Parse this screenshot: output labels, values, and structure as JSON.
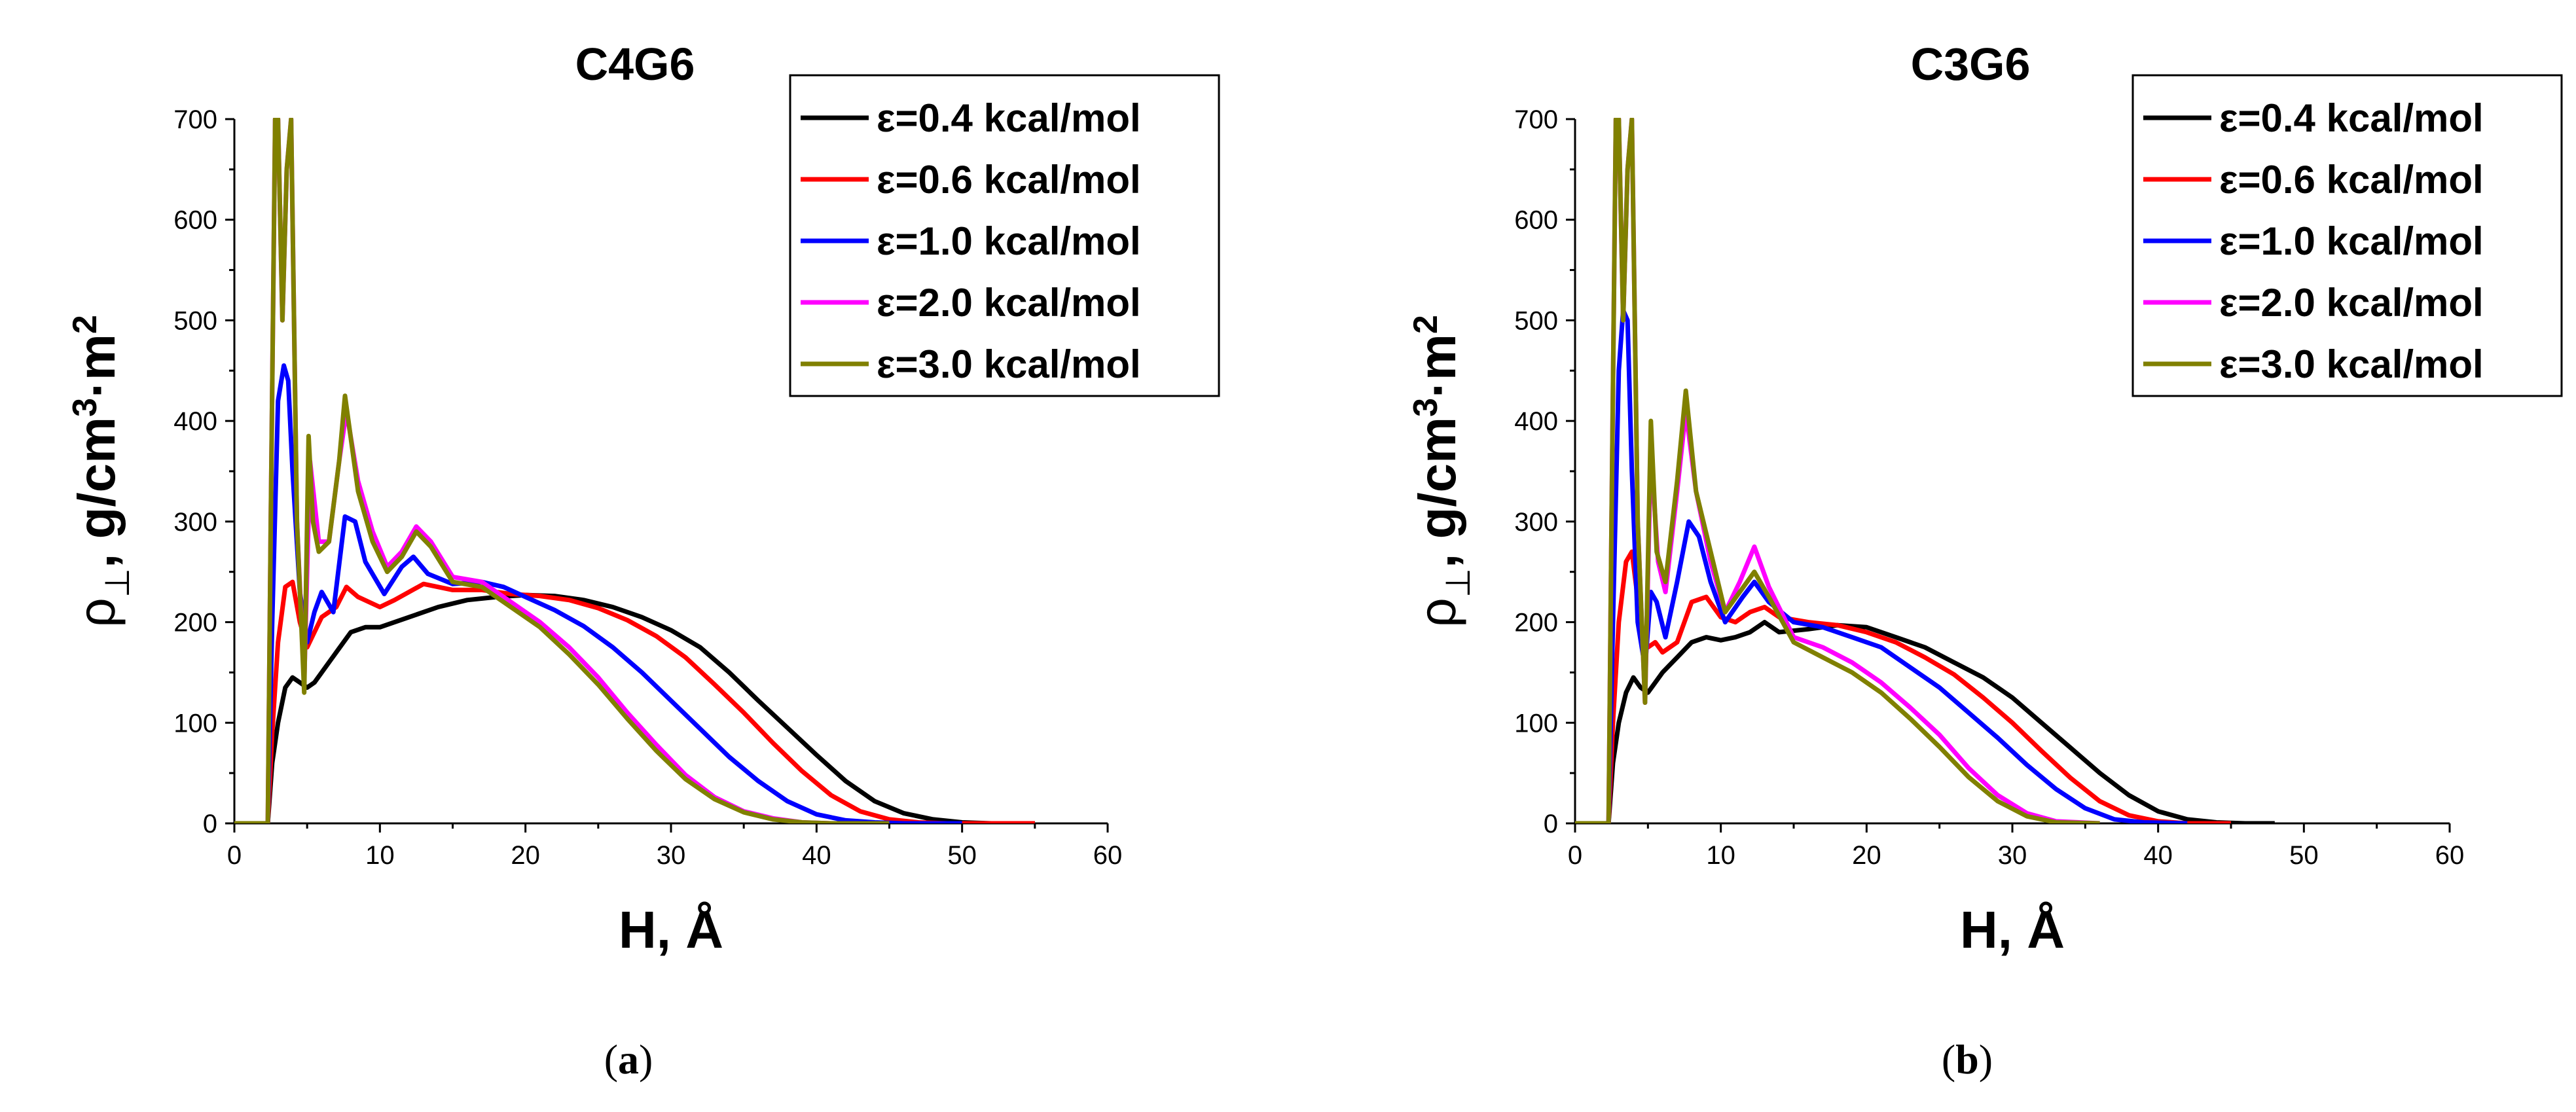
{
  "figure": {
    "panels": [
      {
        "caption_letter": "a"
      },
      {
        "caption_letter": "b"
      }
    ]
  },
  "colors": {
    "eps_0_4": "#000000",
    "eps_0_6": "#ff0000",
    "eps_1_0": "#0000ff",
    "eps_2_0": "#ff00ff",
    "eps_3_0": "#808000"
  },
  "chart_data": [
    {
      "type": "line",
      "title": "C4G6",
      "xlabel": "H, Å",
      "ylabel": {
        "rho": "ρ",
        "sub": "⊥",
        "unit": ", g/cm",
        "sup1": "3",
        "dot": "·m",
        "sup2": "2"
      },
      "xlim": [
        0,
        60
      ],
      "ylim": [
        0,
        700
      ],
      "xticks": [
        0,
        10,
        20,
        30,
        40,
        50,
        60
      ],
      "yticks": [
        0,
        100,
        200,
        300,
        400,
        500,
        600,
        700
      ],
      "legend_position": "top-right",
      "series": [
        {
          "name": "ε=0.4 kcal/mol",
          "color": "#000000",
          "x": [
            0,
            2.3,
            2.6,
            3.0,
            3.5,
            4.0,
            4.5,
            5.0,
            5.5,
            6.0,
            7.0,
            8.0,
            9.0,
            10.0,
            12.0,
            14.0,
            16.0,
            18.0,
            20.0,
            22.0,
            24.0,
            26.0,
            28.0,
            30.0,
            32.0,
            34.0,
            36.0,
            38.0,
            40.0,
            42.0,
            44.0,
            46.0,
            48.0,
            50.0,
            52.0,
            55.0
          ],
          "y": [
            0,
            0,
            60,
            100,
            135,
            145,
            140,
            135,
            140,
            150,
            170,
            190,
            195,
            195,
            205,
            215,
            222,
            225,
            227,
            226,
            222,
            215,
            205,
            192,
            175,
            150,
            122,
            95,
            68,
            42,
            22,
            10,
            4,
            1,
            0,
            0
          ]
        },
        {
          "name": "ε=0.6 kcal/mol",
          "color": "#ff0000",
          "x": [
            0,
            2.3,
            2.6,
            3.0,
            3.5,
            4.0,
            4.5,
            5.0,
            5.5,
            6.0,
            7.0,
            7.7,
            8.5,
            10.0,
            11.0,
            13.0,
            15.0,
            17.0,
            19.0,
            21.0,
            23.0,
            25.0,
            27.0,
            29.0,
            31.0,
            33.0,
            35.0,
            37.0,
            39.0,
            41.0,
            43.0,
            45.0,
            47.0,
            49.0,
            51.0,
            55.0
          ],
          "y": [
            0,
            0,
            90,
            180,
            235,
            240,
            200,
            175,
            190,
            205,
            215,
            235,
            225,
            215,
            222,
            238,
            232,
            232,
            228,
            226,
            222,
            214,
            202,
            186,
            165,
            138,
            110,
            80,
            52,
            28,
            12,
            4,
            1,
            0,
            0,
            0
          ]
        },
        {
          "name": "ε=1.0 kcal/mol",
          "color": "#0000ff",
          "x": [
            0,
            2.3,
            2.6,
            3.0,
            3.4,
            3.7,
            4.0,
            4.5,
            5.0,
            5.5,
            6.0,
            6.8,
            7.6,
            8.3,
            9.0,
            10.3,
            11.5,
            12.3,
            13.3,
            15.0,
            17.0,
            18.5,
            20.0,
            22.0,
            24.0,
            26.0,
            28.0,
            30.0,
            32.0,
            34.0,
            36.0,
            38.0,
            40.0,
            42.0,
            44.0,
            46.0,
            50.0
          ],
          "y": [
            0,
            0,
            200,
            420,
            455,
            440,
            350,
            230,
            180,
            210,
            230,
            210,
            305,
            300,
            260,
            228,
            255,
            265,
            248,
            238,
            240,
            235,
            225,
            212,
            196,
            175,
            150,
            122,
            94,
            66,
            42,
            22,
            9,
            3,
            1,
            0,
            0
          ]
        },
        {
          "name": "ε=2.0 kcal/mol",
          "color": "#ff00ff",
          "x": [
            0,
            2.3,
            2.5,
            2.8,
            3.0,
            3.3,
            3.6,
            3.9,
            4.3,
            4.8,
            5.2,
            5.8,
            6.5,
            7.2,
            7.7,
            8.5,
            9.5,
            10.5,
            11.5,
            12.5,
            13.5,
            15.0,
            17.0,
            19.0,
            21.0,
            23.0,
            25.0,
            27.0,
            29.0,
            31.0,
            33.0,
            35.0,
            37.0,
            39.0,
            41.0,
            45.0
          ],
          "y": [
            0,
            0,
            300,
            700,
            700,
            500,
            650,
            700,
            300,
            140,
            360,
            280,
            280,
            360,
            410,
            340,
            290,
            255,
            270,
            295,
            280,
            245,
            240,
            220,
            200,
            175,
            145,
            110,
            78,
            48,
            26,
            12,
            5,
            1,
            0,
            0
          ]
        },
        {
          "name": "ε=3.0 kcal/mol",
          "color": "#808000",
          "x": [
            0,
            2.3,
            2.5,
            2.8,
            3.0,
            3.3,
            3.6,
            3.9,
            4.3,
            4.8,
            5.1,
            5.4,
            5.8,
            6.5,
            7.2,
            7.6,
            8.5,
            9.5,
            10.5,
            11.5,
            12.5,
            13.5,
            15.0,
            17.0,
            19.0,
            21.0,
            23.0,
            25.0,
            27.0,
            29.0,
            31.0,
            33.0,
            35.0,
            37.0,
            39.0,
            41.0,
            45.0
          ],
          "y": [
            0,
            0,
            300,
            700,
            700,
            500,
            650,
            700,
            300,
            130,
            385,
            300,
            270,
            280,
            360,
            425,
            330,
            280,
            250,
            265,
            290,
            275,
            240,
            235,
            215,
            195,
            168,
            138,
            104,
            72,
            44,
            24,
            11,
            4,
            1,
            0,
            0
          ]
        }
      ]
    },
    {
      "type": "line",
      "title": "C3G6",
      "xlabel": "H, Å",
      "ylabel": {
        "rho": "ρ",
        "sub": "⊥",
        "unit": ", g/cm",
        "sup1": "3",
        "dot": "·m",
        "sup2": "2"
      },
      "xlim": [
        0,
        60
      ],
      "ylim": [
        0,
        700
      ],
      "xticks": [
        0,
        10,
        20,
        30,
        40,
        50,
        60
      ],
      "yticks": [
        0,
        100,
        200,
        300,
        400,
        500,
        600,
        700
      ],
      "legend_position": "top-right",
      "series": [
        {
          "name": "ε=0.4 kcal/mol",
          "color": "#000000",
          "x": [
            0,
            2.3,
            2.6,
            3.0,
            3.5,
            4.0,
            4.5,
            5.0,
            5.5,
            6.0,
            7.0,
            8.0,
            9.0,
            10.0,
            11.0,
            12.0,
            13.0,
            14.0,
            16.0,
            18.0,
            20.0,
            22.0,
            24.0,
            26.0,
            28.0,
            30.0,
            32.0,
            34.0,
            36.0,
            38.0,
            40.0,
            42.0,
            44.0,
            46.0,
            48.0
          ],
          "y": [
            0,
            0,
            60,
            100,
            130,
            145,
            135,
            130,
            140,
            150,
            165,
            180,
            185,
            182,
            185,
            190,
            200,
            190,
            193,
            197,
            195,
            185,
            175,
            160,
            145,
            125,
            100,
            75,
            50,
            28,
            12,
            4,
            1,
            0,
            0
          ]
        },
        {
          "name": "ε=0.6 kcal/mol",
          "color": "#ff0000",
          "x": [
            0,
            2.3,
            2.6,
            3.0,
            3.5,
            3.9,
            4.5,
            5.0,
            5.5,
            6.0,
            7.0,
            8.0,
            9.0,
            10.0,
            11.0,
            12.0,
            13.0,
            14.0,
            16.0,
            18.0,
            20.0,
            22.0,
            24.0,
            26.0,
            28.0,
            30.0,
            32.0,
            34.0,
            36.0,
            38.0,
            40.0,
            42.0,
            45.0
          ],
          "y": [
            0,
            0,
            100,
            200,
            260,
            270,
            200,
            175,
            180,
            170,
            180,
            220,
            225,
            205,
            200,
            210,
            215,
            205,
            200,
            197,
            190,
            180,
            165,
            148,
            125,
            100,
            72,
            45,
            22,
            8,
            2,
            0,
            0
          ]
        },
        {
          "name": "ε=1.0 kcal/mol",
          "color": "#0000ff",
          "x": [
            0,
            2.3,
            2.6,
            3.0,
            3.3,
            3.6,
            3.9,
            4.3,
            4.8,
            5.2,
            5.6,
            6.2,
            7.0,
            7.8,
            8.5,
            9.3,
            10.3,
            11.5,
            12.3,
            13.3,
            15.0,
            17.0,
            19.0,
            21.0,
            23.0,
            25.0,
            27.0,
            29.0,
            31.0,
            33.0,
            35.0,
            37.0,
            39.0,
            42.0
          ],
          "y": [
            0,
            0,
            200,
            450,
            510,
            500,
            350,
            200,
            155,
            230,
            220,
            185,
            240,
            300,
            285,
            240,
            200,
            225,
            240,
            220,
            200,
            195,
            185,
            175,
            155,
            135,
            110,
            85,
            58,
            34,
            15,
            4,
            1,
            0
          ]
        },
        {
          "name": "ε=2.0 kcal/mol",
          "color": "#ff00ff",
          "x": [
            0,
            2.3,
            2.5,
            2.8,
            3.0,
            3.3,
            3.6,
            3.9,
            4.3,
            4.8,
            5.2,
            5.7,
            6.2,
            7.0,
            7.6,
            8.3,
            9.3,
            10.3,
            11.3,
            12.3,
            13.3,
            15.0,
            17.0,
            19.0,
            21.0,
            23.0,
            25.0,
            27.0,
            29.0,
            31.0,
            33.0,
            36.0
          ],
          "y": [
            0,
            0,
            300,
            700,
            700,
            500,
            650,
            700,
            300,
            120,
            370,
            260,
            230,
            330,
            410,
            330,
            260,
            210,
            240,
            275,
            235,
            185,
            175,
            160,
            140,
            115,
            88,
            55,
            28,
            10,
            2,
            0
          ]
        },
        {
          "name": "ε=3.0 kcal/mol",
          "color": "#808000",
          "x": [
            0,
            2.3,
            2.5,
            2.8,
            3.0,
            3.3,
            3.6,
            3.9,
            4.3,
            4.8,
            5.2,
            5.6,
            6.2,
            7.0,
            7.6,
            8.3,
            9.3,
            10.3,
            11.3,
            12.3,
            13.3,
            15.0,
            17.0,
            19.0,
            21.0,
            23.0,
            25.0,
            27.0,
            29.0,
            31.0,
            33.0,
            36.0
          ],
          "y": [
            0,
            0,
            300,
            700,
            700,
            500,
            650,
            700,
            300,
            120,
            400,
            270,
            240,
            340,
            430,
            330,
            270,
            210,
            230,
            250,
            225,
            180,
            165,
            150,
            130,
            104,
            76,
            46,
            22,
            7,
            1,
            0
          ]
        }
      ]
    }
  ]
}
